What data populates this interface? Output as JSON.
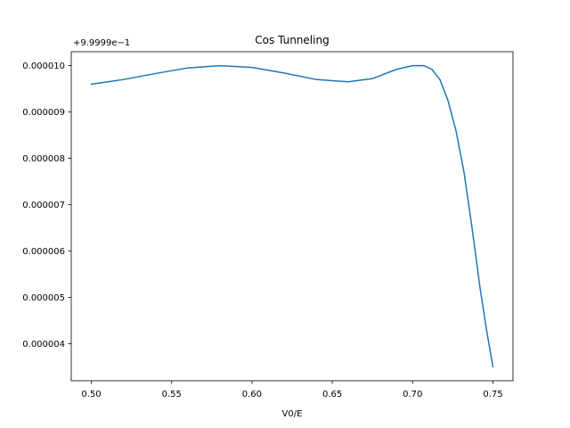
{
  "chart_data": {
    "type": "line",
    "title": "Cos Tunneling",
    "xlabel": "V0/E",
    "ylabel": "",
    "y_offset_label": "+9.9999e−1",
    "xlim": [
      0.4875,
      0.7625
    ],
    "ylim": [
      3.2e-06,
      1.03e-05
    ],
    "x_ticks": [
      0.5,
      0.55,
      0.6,
      0.65,
      0.7,
      0.75
    ],
    "x_tick_labels": [
      "0.50",
      "0.55",
      "0.60",
      "0.65",
      "0.70",
      "0.75"
    ],
    "y_ticks": [
      4e-06,
      5e-06,
      6e-06,
      7e-06,
      8e-06,
      9e-06,
      1e-05
    ],
    "y_tick_labels": [
      "0.000004",
      "0.000005",
      "0.000006",
      "0.000007",
      "0.000008",
      "0.000009",
      "0.000010"
    ],
    "grid": false,
    "series": [
      {
        "color": "#1f77b4",
        "x": [
          0.5,
          0.52,
          0.54,
          0.56,
          0.58,
          0.6,
          0.62,
          0.64,
          0.66,
          0.675,
          0.69,
          0.7,
          0.707,
          0.712,
          0.717,
          0.722,
          0.727,
          0.732,
          0.737,
          0.742,
          0.746,
          0.75
        ],
        "y": [
          9.6e-06,
          9.7e-06,
          9.83e-06,
          9.95e-06,
          1e-05,
          9.96e-06,
          9.84e-06,
          9.7e-06,
          9.65e-06,
          9.72e-06,
          9.92e-06,
          1e-05,
          1e-05,
          9.92e-06,
          9.7e-06,
          9.25e-06,
          8.6e-06,
          7.7e-06,
          6.5e-06,
          5.2e-06,
          4.3e-06,
          3.5e-06
        ]
      }
    ]
  }
}
